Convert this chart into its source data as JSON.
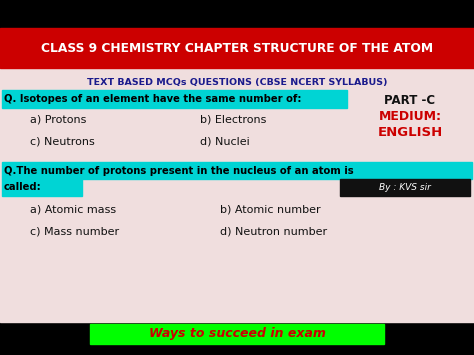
{
  "bg_color": "#000000",
  "content_bg": "#f0dede",
  "header_bg": "#cc0000",
  "header_text": "CLASS 9 CHEMISTRY CHAPTER STRUCTURE OF THE ATOM",
  "header_text_color": "#ffffff",
  "subheader_text": "TEXT BASED MCQs QUESTIONS (CBSE NCERT SYLLABUS)",
  "subheader_color": "#1a1a8c",
  "q1_highlight": "#00d4d4",
  "q1_text": "Q. Isotopes of an element have the same number of:",
  "q1_opts_row1": [
    "a) Protons",
    "b) Electrons"
  ],
  "q1_opts_row2": [
    "c) Neutrons",
    "d) Nuclei"
  ],
  "q2_highlight": "#00d4d4",
  "q2_text_line1": "Q.The number of protons present in the nucleus of an atom is",
  "q2_text_line2": "called:",
  "q2_opts_row1": [
    "a) Atomic mass",
    "b) Atomic number"
  ],
  "q2_opts_row2": [
    "c) Mass number",
    "d) Neutron number"
  ],
  "part_c_label": "PART -C",
  "medium_label": "MEDIUM:",
  "english_label": "ENGLISH",
  "part_c_color": "#111111",
  "medium_color": "#cc0000",
  "english_color": "#cc0000",
  "by_label": "By : KVS sir",
  "by_bg": "#111111",
  "by_color": "#ffffff",
  "footer_text": "Ways to succeed in exam",
  "footer_bg": "#00ff00",
  "footer_color": "#cc0000",
  "option_color": "#111111",
  "fig_w": 4.74,
  "fig_h": 3.55,
  "dpi": 100
}
